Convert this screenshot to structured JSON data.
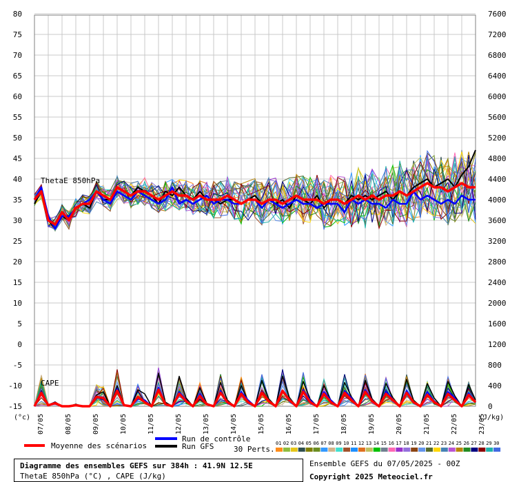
{
  "labels": {
    "thetae": "ThetaE 850hPa",
    "cape": "CAPE",
    "left_unit": "(°c)",
    "right_unit": "(J/kg)"
  },
  "legend": {
    "mean": "Moyenne des scénarios",
    "control": "Run de contrôle",
    "gfs": "Run GFS",
    "perts": "30 Perts.",
    "members": [
      "01",
      "02",
      "03",
      "04",
      "05",
      "06",
      "07",
      "08",
      "09",
      "10",
      "11",
      "12",
      "13",
      "14",
      "15",
      "16",
      "17",
      "18",
      "19",
      "20",
      "21",
      "22",
      "23",
      "24",
      "25",
      "26",
      "27",
      "28",
      "29",
      "30"
    ]
  },
  "footer": {
    "title": "Diagramme des ensembles GEFS sur 384h : 41.9N 12.5E",
    "subtitle": "ThetaE 850hPa (°C) , CAPE (J/kg)",
    "run": "Ensemble GEFS du 07/05/2025 - 00Z",
    "copyright": "Copyright 2025 Meteociel.fr"
  },
  "colors": {
    "mean": "#ff0000",
    "control": "#0000ff",
    "gfs": "#000000",
    "grid": "#c8c8c8",
    "members": [
      "#ff8c1a",
      "#8fbc3f",
      "#e6c619",
      "#2f4f4f",
      "#7f7f00",
      "#6b8e23",
      "#3399ff",
      "#d2b48c",
      "#40e0d0",
      "#a0522d",
      "#1e90ff",
      "#e07020",
      "#c0c060",
      "#00c000",
      "#708090",
      "#ff69b4",
      "#9932cc",
      "#9370db",
      "#8b4513",
      "#6495ed",
      "#556b2f",
      "#ffd700",
      "#4682b4",
      "#ba55d3",
      "#b8860b",
      "#228b22",
      "#000080",
      "#8b0000",
      "#20b2aa",
      "#4169e1"
    ]
  },
  "chart_data": {
    "type": "line",
    "x_label": "",
    "y_left_ticks": [
      80,
      75,
      70,
      65,
      60,
      55,
      50,
      45,
      40,
      35,
      30,
      25,
      20,
      15,
      10,
      5,
      0,
      -5,
      -10,
      -15
    ],
    "y_right_ticks": [
      7600,
      7200,
      6800,
      6400,
      6000,
      5600,
      5200,
      4800,
      4400,
      4000,
      3600,
      3200,
      2800,
      2400,
      2000,
      1600,
      1200,
      800,
      400,
      0
    ],
    "x_ticks": [
      "07/05",
      "08/05",
      "09/05",
      "10/05",
      "11/05",
      "12/05",
      "13/05",
      "14/05",
      "15/05",
      "16/05",
      "17/05",
      "18/05",
      "19/05",
      "20/05",
      "21/05",
      "22/05",
      "23/05"
    ],
    "thetae_mean": [
      35,
      37,
      30,
      29,
      32,
      30,
      33,
      34,
      34,
      37,
      36,
      35,
      38,
      37,
      36,
      37,
      37,
      36,
      35,
      36,
      37,
      36,
      36,
      35,
      36,
      35,
      35,
      35,
      36,
      35,
      34,
      35,
      35,
      34,
      35,
      35,
      34,
      35,
      36,
      35,
      35,
      35,
      34,
      35,
      35,
      34,
      35,
      36,
      35,
      36,
      35,
      36,
      36,
      37,
      36,
      37,
      38,
      39,
      38,
      38,
      37,
      38,
      39,
      38,
      38
    ],
    "thetae_control": [
      35,
      38,
      31,
      28,
      31,
      31,
      33,
      34,
      35,
      37,
      35,
      34,
      37,
      36,
      35,
      37,
      36,
      35,
      34,
      35,
      38,
      34,
      35,
      34,
      35,
      36,
      34,
      35,
      35,
      34,
      34,
      35,
      35,
      33,
      35,
      34,
      33,
      34,
      35,
      34,
      34,
      33,
      34,
      34,
      34,
      32,
      35,
      34,
      35,
      34,
      34,
      33,
      35,
      34,
      34,
      37,
      35,
      36,
      35,
      34,
      35,
      34,
      36,
      35,
      35
    ],
    "thetae_gfs": [
      34,
      37,
      30,
      28,
      31,
      30,
      33,
      34,
      33,
      37,
      35,
      35,
      38,
      37,
      36,
      38,
      37,
      36,
      34,
      37,
      36,
      38,
      36,
      35,
      37,
      35,
      35,
      34,
      35,
      35,
      34,
      35,
      36,
      34,
      35,
      34,
      35,
      33,
      36,
      35,
      34,
      36,
      33,
      35,
      35,
      34,
      36,
      35,
      36,
      35,
      36,
      37,
      35,
      37,
      36,
      38,
      39,
      40,
      38,
      39,
      40,
      38,
      41,
      43,
      47
    ],
    "cape_mean": [
      0,
      130,
      10,
      30,
      0,
      0,
      10,
      0,
      0,
      90,
      80,
      0,
      150,
      10,
      0,
      90,
      40,
      0,
      160,
      20,
      0,
      120,
      50,
      0,
      100,
      20,
      0,
      130,
      40,
      0,
      120,
      40,
      0,
      130,
      50,
      0,
      150,
      60,
      0,
      140,
      40,
      0,
      120,
      40,
      0,
      130,
      60,
      0,
      140,
      50,
      0,
      120,
      60,
      0,
      130,
      40,
      0,
      110,
      40,
      0,
      120,
      60,
      0,
      110,
      40
    ],
    "cape_control": [
      0,
      140,
      10,
      30,
      0,
      0,
      10,
      0,
      0,
      80,
      90,
      0,
      170,
      10,
      0,
      70,
      60,
      0,
      180,
      20,
      0,
      140,
      60,
      0,
      120,
      20,
      0,
      150,
      30,
      0,
      140,
      60,
      0,
      140,
      50,
      0,
      140,
      70,
      0,
      160,
      60,
      0,
      140,
      60,
      0,
      150,
      80,
      0,
      160,
      60,
      0,
      140,
      70,
      0,
      150,
      40,
      0,
      140,
      50,
      0,
      140,
      80,
      0,
      130,
      40
    ],
    "cape_gfs": [
      0,
      150,
      10,
      40,
      0,
      0,
      20,
      0,
      0,
      110,
      140,
      0,
      200,
      10,
      0,
      160,
      120,
      0,
      320,
      40,
      0,
      290,
      80,
      0,
      180,
      30,
      0,
      230,
      60,
      0,
      200,
      50,
      0,
      250,
      70,
      0,
      290,
      80,
      0,
      240,
      70,
      0,
      200,
      60,
      0,
      230,
      90,
      0,
      250,
      70,
      0,
      220,
      80,
      0,
      260,
      60,
      0,
      220,
      80,
      0,
      240,
      100,
      0,
      210,
      60
    ]
  }
}
